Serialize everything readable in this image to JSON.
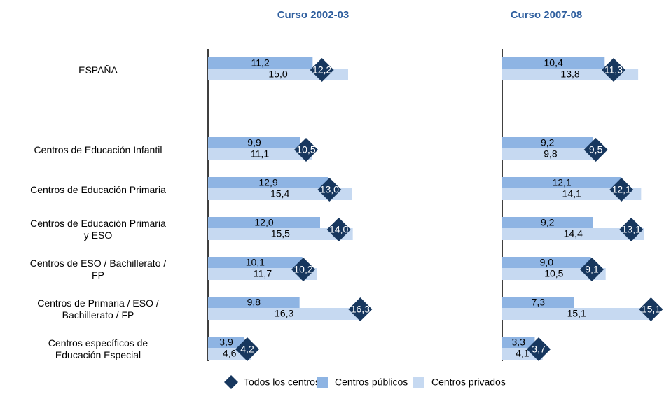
{
  "chart_data": [
    {
      "type": "bar",
      "orientation": "horizontal",
      "title": "Curso 2002-03",
      "categories": [
        "ESPAÑA",
        "Centros de Educación Infantil",
        "Centros de Educación Primaria",
        "Centros de Educación Primaria\ny ESO",
        "Centros de ESO  / Bachillerato /\nFP",
        "Centros de Primaria  / ESO /\nBachillerato / FP",
        "Centros específicos de\nEducación Especial"
      ],
      "xlim": [
        0,
        15
      ],
      "legend": "bottom",
      "series": [
        {
          "name": "Todos los centros",
          "color": "#17375e",
          "marker": "diamond",
          "values": [
            12.2,
            10.5,
            13.0,
            14.0,
            10.2,
            16.3,
            4.2
          ],
          "value_labels": [
            "12,2",
            "10,5",
            "13,0",
            "14,0",
            "10,2",
            "16,3",
            "4,2"
          ]
        },
        {
          "name": "Centros públicos",
          "color": "#8eb4e3",
          "values": [
            11.2,
            9.9,
            12.9,
            12.0,
            10.1,
            9.8,
            3.9
          ],
          "value_labels": [
            "11,2",
            "9,9",
            "12,9",
            "12,0",
            "10,1",
            "9,8",
            "3,9"
          ]
        },
        {
          "name": "Centros privados",
          "color": "#c6d9f1",
          "values": [
            15.0,
            11.1,
            15.4,
            15.5,
            11.7,
            16.3,
            4.6
          ],
          "value_labels": [
            "15,0",
            "11,1",
            "15,4",
            "15,5",
            "11,7",
            "16,3",
            "4,6"
          ]
        }
      ]
    },
    {
      "type": "bar",
      "orientation": "horizontal",
      "title": "Curso 2007-08",
      "xlim": [
        0,
        15
      ],
      "series": [
        {
          "color": "#17375e",
          "marker": "diamond",
          "values": [
            11.3,
            9.5,
            12.1,
            13.1,
            9.1,
            15.1,
            3.7
          ],
          "value_labels": [
            "11,3",
            "9,5",
            "12,1",
            "13,1",
            "9,1",
            "15,1",
            "3,7"
          ]
        },
        {
          "color": "#8eb4e3",
          "values": [
            10.4,
            9.2,
            12.1,
            9.2,
            9.0,
            7.3,
            3.3
          ],
          "value_labels": [
            "10,4",
            "9,2",
            "12,1",
            "9,2",
            "9,0",
            "7,3",
            "3,3"
          ]
        },
        {
          "color": "#c6d9f1",
          "values": [
            13.8,
            9.8,
            14.1,
            14.4,
            10.5,
            15.1,
            4.1
          ],
          "value_labels": [
            "13,8",
            "9,8",
            "14,1",
            "14,4",
            "10,5",
            "15,1",
            "4,1"
          ]
        }
      ]
    }
  ]
}
